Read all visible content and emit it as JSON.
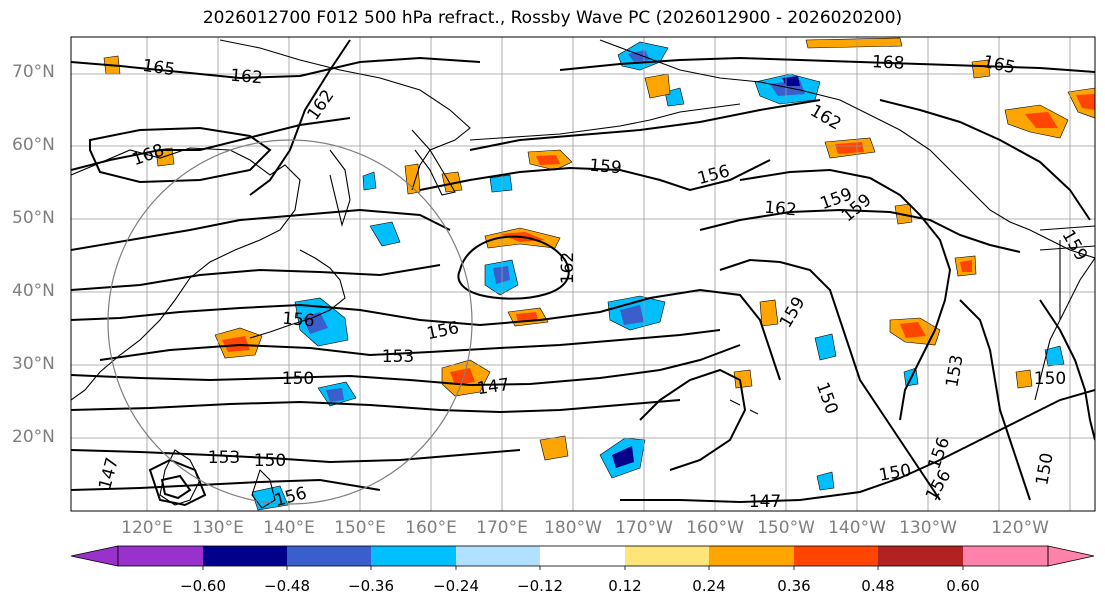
{
  "title": "2026012700 F012 500 hPa refract., Rossby Wave PC (2026012900 - 2026020200)",
  "lat_labels": [
    "70°N",
    "60°N",
    "50°N",
    "40°N",
    "30°N",
    "20°N"
  ],
  "lon_labels": [
    "120°E",
    "130°E",
    "140°E",
    "150°E",
    "160°E",
    "170°E",
    "180°W",
    "170°W",
    "160°W",
    "150°W",
    "140°W",
    "130°W",
    "120°W"
  ],
  "colorbar": {
    "colors": [
      "#9932cc",
      "#00008b",
      "#3a5fcd",
      "#00bfff",
      "#b0e2ff",
      "#ffffff",
      "#ffe47a",
      "#ffa500",
      "#ff4500",
      "#b22222",
      "#ff82ab"
    ],
    "tick_labels": [
      "−0.60",
      "−0.48",
      "−0.36",
      "−0.24",
      "−0.12",
      "0.12",
      "0.24",
      "0.36",
      "0.48",
      "0.60"
    ],
    "tick_values": [
      -0.6,
      -0.48,
      -0.36,
      -0.24,
      -0.12,
      0.12,
      0.24,
      0.36,
      0.48,
      0.6
    ]
  },
  "contour_labels": [
    "165",
    "162",
    "162",
    "168",
    "165",
    "168",
    "159",
    "156",
    "162",
    "162",
    "159",
    "159",
    "162",
    "156",
    "156",
    "153",
    "150",
    "147",
    "159",
    "150",
    "153",
    "150",
    "147",
    "153",
    "150",
    "156",
    "147",
    "150",
    "156",
    "156",
    "150",
    "159"
  ]
}
